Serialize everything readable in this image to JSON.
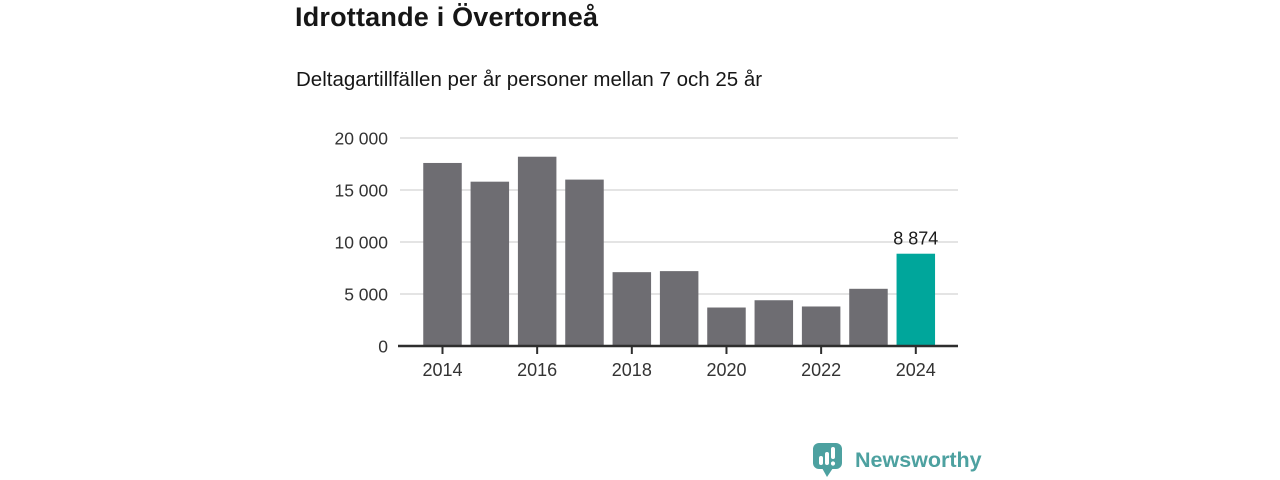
{
  "header": {
    "title": "Idrottande i Övertorneå",
    "subtitle": "Deltagartillfällen per år personer mellan 7 och 25 år"
  },
  "chart_data": {
    "type": "bar",
    "title": "Idrottande i Övertorneå",
    "subtitle": "Deltagartillfällen per år personer mellan 7 och 25 år",
    "categories": [
      "2014",
      "2015",
      "2016",
      "2017",
      "2018",
      "2019",
      "2020",
      "2021",
      "2022",
      "2023",
      "2024"
    ],
    "values": [
      17600,
      15800,
      18200,
      16000,
      7100,
      7200,
      3700,
      4400,
      3800,
      5500,
      8874
    ],
    "ylim": [
      0,
      20000
    ],
    "y_ticks": [
      0,
      5000,
      10000,
      15000,
      20000
    ],
    "y_tick_labels": [
      "0",
      "5 000",
      "10 000",
      "15 000",
      "20 000"
    ],
    "x_tick_labels": [
      "2014",
      "2016",
      "2018",
      "2020",
      "2022",
      "2024"
    ],
    "grid": "horizontal",
    "legend": "none",
    "highlight_category": "2024",
    "highlight_value_label": "8 874",
    "colors": {
      "bar": "#6e6d72",
      "highlight": "#00a69b",
      "grid": "#dcdcdc",
      "axis": "#2e2e2e",
      "tick_text": "#333333",
      "value_label": "#1a1a1a"
    }
  },
  "footer": {
    "brand_name": "Newsworthy",
    "brand_color": "#4da1a0",
    "logo_icon": "bar-chart-speech-bubble-icon"
  }
}
